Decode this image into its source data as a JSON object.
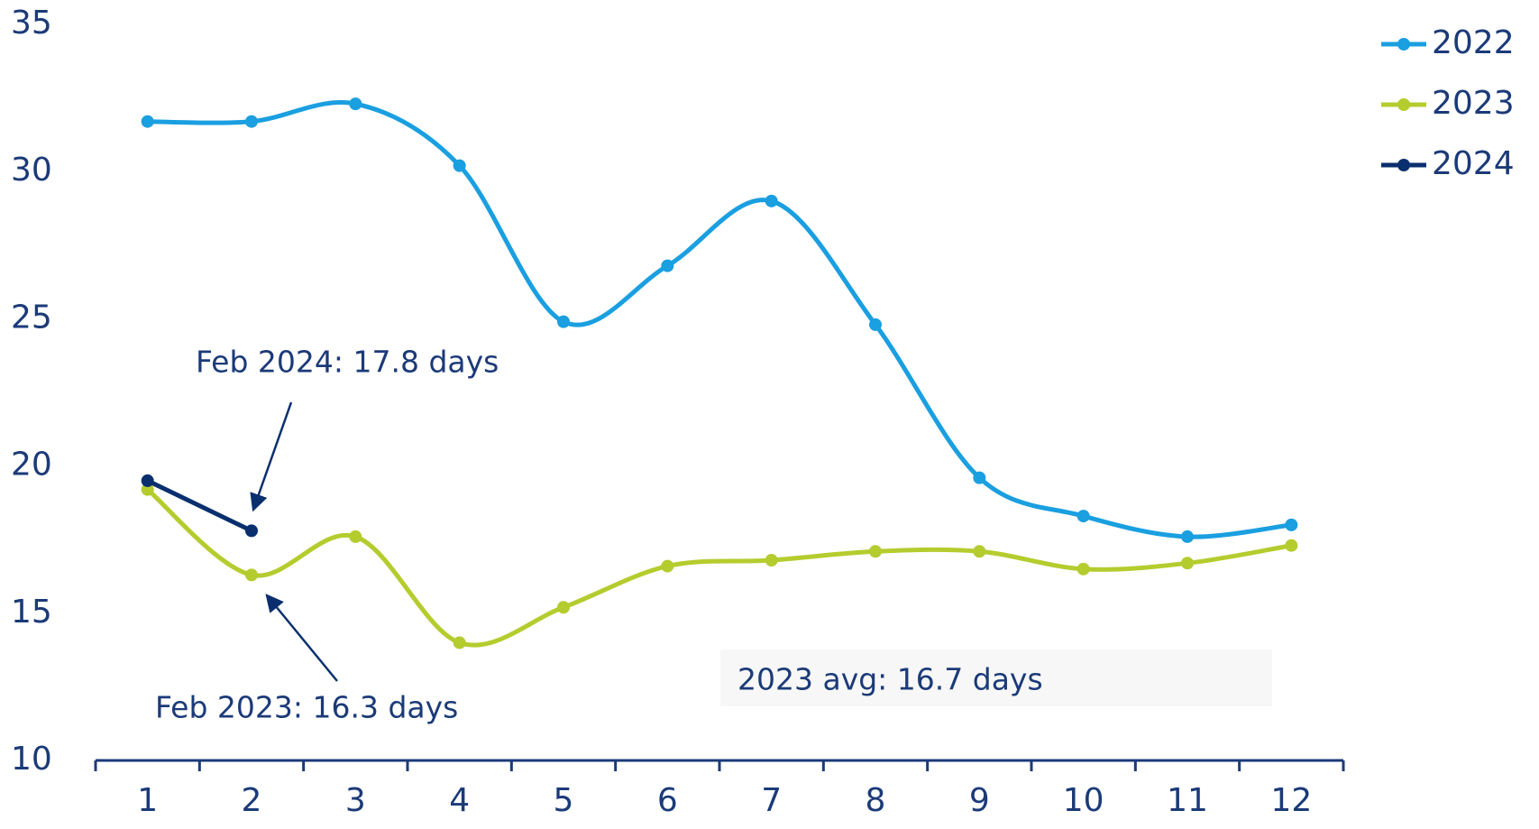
{
  "chart_data": {
    "type": "line",
    "categories": [
      1,
      2,
      3,
      4,
      5,
      6,
      7,
      8,
      9,
      10,
      11,
      12
    ],
    "series": [
      {
        "name": "2022",
        "color": "#1a9fe0",
        "values": [
          31.7,
          31.7,
          32.3,
          30.2,
          24.9,
          26.8,
          29.0,
          24.8,
          19.6,
          18.3,
          17.6,
          18.0
        ]
      },
      {
        "name": "2023",
        "color": "#b5cc2e",
        "values": [
          19.2,
          16.3,
          17.6,
          14.0,
          15.2,
          16.6,
          16.8,
          17.1,
          17.1,
          16.5,
          16.7,
          17.3
        ]
      },
      {
        "name": "2024",
        "color": "#0a2f6e",
        "values": [
          19.5,
          17.8,
          null,
          null,
          null,
          null,
          null,
          null,
          null,
          null,
          null,
          null
        ]
      }
    ],
    "ylim": [
      10,
      35
    ],
    "yticks": [
      10,
      15,
      20,
      25,
      30,
      35
    ],
    "smooth": true,
    "legend": "top-right",
    "annotations": [
      "Feb 2024: 17.8 days",
      "Feb 2023: 16.3 days",
      "2023 avg: 16.7 days"
    ]
  }
}
